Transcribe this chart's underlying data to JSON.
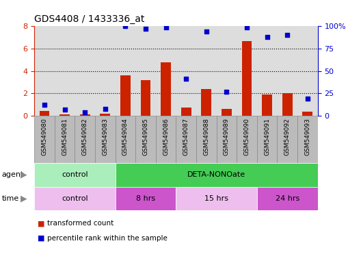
{
  "title": "GDS4408 / 1433336_at",
  "samples": [
    "GSM549080",
    "GSM549081",
    "GSM549082",
    "GSM549083",
    "GSM549084",
    "GSM549085",
    "GSM549086",
    "GSM549087",
    "GSM549088",
    "GSM549089",
    "GSM549090",
    "GSM549091",
    "GSM549092",
    "GSM549093"
  ],
  "transformed_count": [
    0.4,
    0.15,
    0.1,
    0.2,
    3.6,
    3.2,
    4.8,
    0.75,
    2.4,
    0.6,
    6.7,
    1.9,
    2.05,
    0.35
  ],
  "percentile_rank": [
    12,
    7,
    4,
    8,
    100,
    97,
    99,
    41,
    94,
    27,
    99,
    88,
    90,
    19
  ],
  "bar_color": "#CC2200",
  "dot_color": "#0000CC",
  "ylim_left": [
    0,
    8
  ],
  "ylim_right": [
    0,
    100
  ],
  "yticks_left": [
    0,
    2,
    4,
    6,
    8
  ],
  "yticks_right": [
    0,
    25,
    50,
    75,
    100
  ],
  "ytick_labels_right": [
    "0",
    "25",
    "50",
    "75",
    "100%"
  ],
  "grid_color": "black",
  "agent_groups": [
    {
      "label": "control",
      "start": 0,
      "end": 4,
      "color": "#AAEEBB"
    },
    {
      "label": "DETA-NONOate",
      "start": 4,
      "end": 14,
      "color": "#44CC55"
    }
  ],
  "time_groups": [
    {
      "label": "control",
      "start": 0,
      "end": 4,
      "color": "#EEBFEE"
    },
    {
      "label": "8 hrs",
      "start": 4,
      "end": 7,
      "color": "#CC55CC"
    },
    {
      "label": "15 hrs",
      "start": 7,
      "end": 11,
      "color": "#EEBFEE"
    },
    {
      "label": "24 hrs",
      "start": 11,
      "end": 14,
      "color": "#CC55CC"
    }
  ],
  "legend": [
    {
      "label": "transformed count",
      "color": "#CC2200"
    },
    {
      "label": "percentile rank within the sample",
      "color": "#0000CC"
    }
  ],
  "left_tick_color": "#CC2200",
  "right_tick_color": "#0000CC",
  "bar_width": 0.5,
  "plot_bg_color": "#DDDDDD",
  "label_bg_color": "#BBBBBB",
  "border_color": "#888888"
}
